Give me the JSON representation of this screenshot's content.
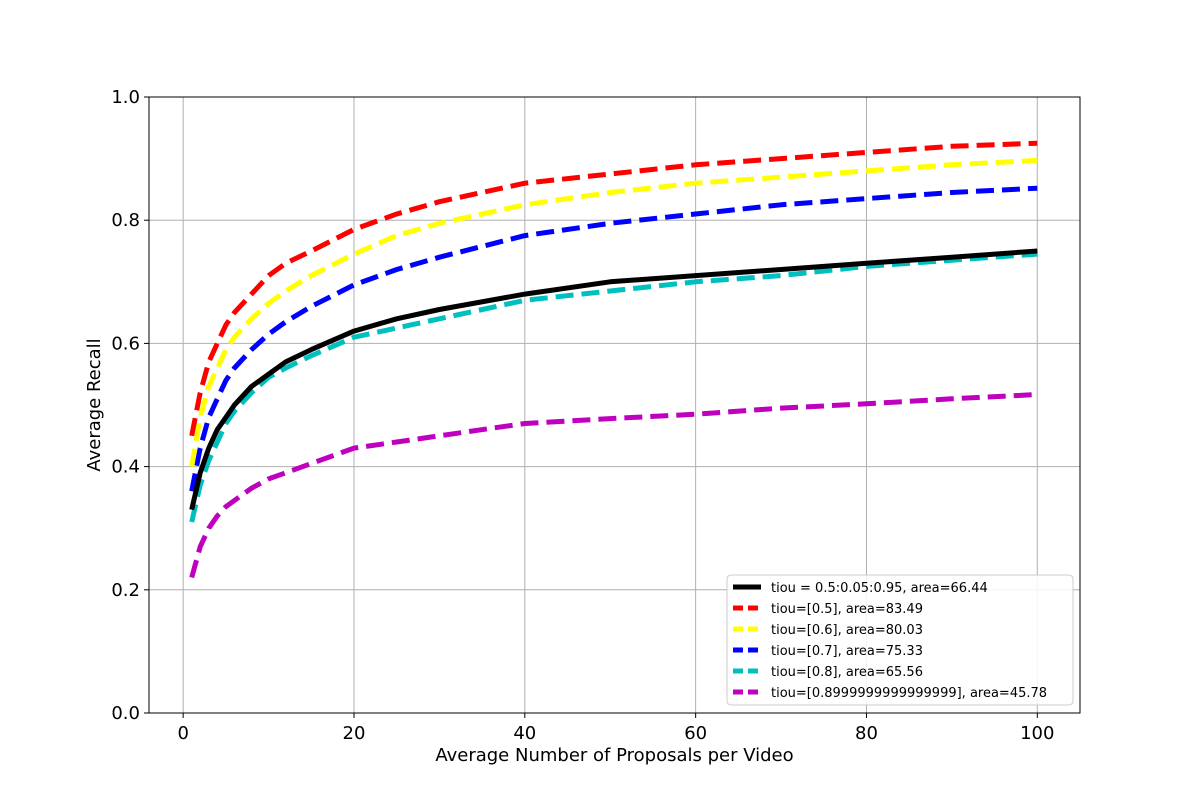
{
  "chart_data": {
    "type": "line",
    "title": "",
    "xlabel": "Average Number of Proposals per Video",
    "ylabel": "Average Recall",
    "xlim": [
      -4,
      105
    ],
    "ylim": [
      0.0,
      1.0
    ],
    "xticks": [
      "0",
      "20",
      "40",
      "60",
      "80",
      "100"
    ],
    "yticks": [
      "0.0",
      "0.2",
      "0.4",
      "0.6",
      "0.8",
      "1.0"
    ],
    "grid": true,
    "legend_position": "lower-right",
    "x": [
      1,
      2,
      3,
      4,
      5,
      6,
      8,
      10,
      12,
      15,
      20,
      25,
      30,
      40,
      50,
      60,
      70,
      80,
      90,
      100
    ],
    "series": [
      {
        "name": "tiou = 0.5:0.05:0.95, area=66.44",
        "color": "#000000",
        "style": "solid",
        "values": [
          0.33,
          0.39,
          0.43,
          0.46,
          0.48,
          0.5,
          0.53,
          0.55,
          0.57,
          0.59,
          0.62,
          0.64,
          0.655,
          0.68,
          0.7,
          0.71,
          0.72,
          0.73,
          0.74,
          0.75
        ]
      },
      {
        "name": "tiou=[0.5], area=83.49",
        "color": "#ff0000",
        "style": "dashed",
        "values": [
          0.45,
          0.52,
          0.57,
          0.6,
          0.63,
          0.65,
          0.68,
          0.71,
          0.73,
          0.75,
          0.785,
          0.81,
          0.83,
          0.86,
          0.875,
          0.89,
          0.9,
          0.91,
          0.92,
          0.925
        ]
      },
      {
        "name": "tiou=[0.6], area=80.03",
        "color": "#ffff00",
        "style": "dashed",
        "values": [
          0.4,
          0.48,
          0.53,
          0.56,
          0.59,
          0.61,
          0.64,
          0.665,
          0.685,
          0.71,
          0.745,
          0.775,
          0.795,
          0.825,
          0.845,
          0.86,
          0.87,
          0.88,
          0.89,
          0.897
        ]
      },
      {
        "name": "tiou=[0.7], area=75.33",
        "color": "#0000ff",
        "style": "dashed",
        "values": [
          0.36,
          0.43,
          0.48,
          0.51,
          0.54,
          0.56,
          0.59,
          0.615,
          0.635,
          0.66,
          0.695,
          0.72,
          0.74,
          0.775,
          0.795,
          0.81,
          0.825,
          0.835,
          0.845,
          0.852
        ]
      },
      {
        "name": "tiou=[0.8], area=65.56",
        "color": "#00bfbf",
        "style": "dashed",
        "values": [
          0.31,
          0.37,
          0.41,
          0.44,
          0.47,
          0.49,
          0.52,
          0.545,
          0.56,
          0.58,
          0.61,
          0.625,
          0.64,
          0.67,
          0.685,
          0.7,
          0.71,
          0.725,
          0.735,
          0.745
        ]
      },
      {
        "name": "tiou=[0.8999999999999999], area=45.78",
        "color": "#bf00bf",
        "style": "dashed",
        "values": [
          0.22,
          0.27,
          0.3,
          0.32,
          0.335,
          0.345,
          0.365,
          0.38,
          0.39,
          0.405,
          0.43,
          0.44,
          0.45,
          0.47,
          0.478,
          0.485,
          0.495,
          0.502,
          0.51,
          0.517
        ]
      }
    ]
  }
}
